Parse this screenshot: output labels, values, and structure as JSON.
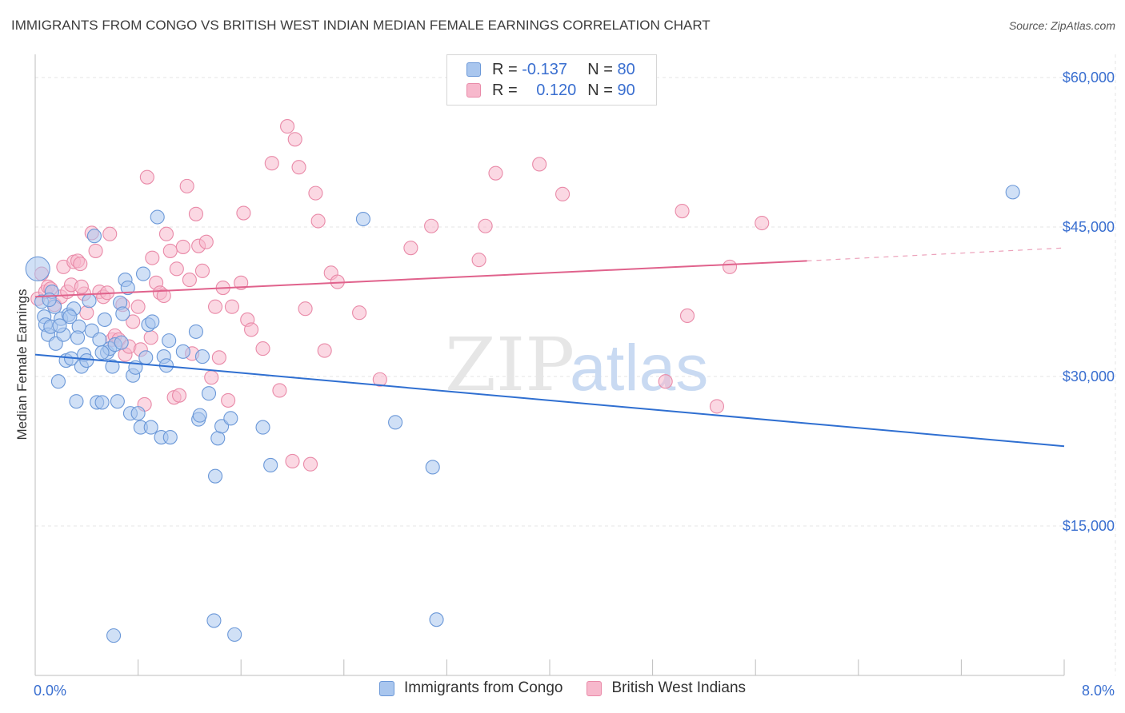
{
  "title": "IMMIGRANTS FROM CONGO VS BRITISH WEST INDIAN MEDIAN FEMALE EARNINGS CORRELATION CHART",
  "source": "Source: ZipAtlas.com",
  "watermark": {
    "zip": "ZIP",
    "atlas": "atlas"
  },
  "colors": {
    "congo_fill": "#a9c6ee",
    "congo_stroke": "#6b98d8",
    "congo_line": "#2f6fd1",
    "bwi_fill": "#f7b8cc",
    "bwi_stroke": "#e98aa8",
    "bwi_line": "#e0628c",
    "axis_label": "#3a6fd0",
    "grid": "#e4e4e4"
  },
  "legend": {
    "r_label": "R =",
    "n_label": "N =",
    "congo": {
      "r": "-0.137",
      "n": "80"
    },
    "bwi": {
      "r": "0.120",
      "n": "90"
    }
  },
  "chart_data": {
    "type": "scatter",
    "xlabel": "",
    "ylabel": "Median Female Earnings",
    "xlim": [
      0,
      8
    ],
    "ylim": [
      0,
      63000
    ],
    "x_tick_labels": {
      "min": "0.0%",
      "max": "8.0%"
    },
    "y_ticks": [
      {
        "value": 15000,
        "label": "$15,000"
      },
      {
        "value": 30000,
        "label": "$30,000"
      },
      {
        "value": 45000,
        "label": "$45,000"
      },
      {
        "value": 60000,
        "label": "$60,000"
      }
    ],
    "grid": true,
    "legend_position": "top-center",
    "series": [
      {
        "name": "Immigrants from Congo",
        "r": -0.137,
        "n": 80,
        "trend": {
          "x0": 0.0,
          "y0": 32200,
          "x1": 8.0,
          "y1": 23000
        },
        "points": [
          [
            0.02,
            40800
          ],
          [
            0.05,
            37500
          ],
          [
            0.07,
            36000
          ],
          [
            0.08,
            35200
          ],
          [
            0.1,
            34200
          ],
          [
            0.12,
            35000
          ],
          [
            0.13,
            38500
          ],
          [
            0.15,
            37000
          ],
          [
            0.16,
            33300
          ],
          [
            0.18,
            29500
          ],
          [
            0.2,
            35800
          ],
          [
            0.22,
            34200
          ],
          [
            0.24,
            31600
          ],
          [
            0.26,
            36200
          ],
          [
            0.28,
            31800
          ],
          [
            0.3,
            36800
          ],
          [
            0.32,
            27500
          ],
          [
            0.34,
            35000
          ],
          [
            0.36,
            31000
          ],
          [
            0.38,
            32200
          ],
          [
            0.4,
            31600
          ],
          [
            0.42,
            37600
          ],
          [
            0.44,
            34600
          ],
          [
            0.46,
            44100
          ],
          [
            0.48,
            27400
          ],
          [
            0.5,
            33700
          ],
          [
            0.52,
            27400
          ],
          [
            0.54,
            35700
          ],
          [
            0.56,
            32400
          ],
          [
            0.58,
            32800
          ],
          [
            0.6,
            31000
          ],
          [
            0.62,
            33200
          ],
          [
            0.64,
            27500
          ],
          [
            0.66,
            37400
          ],
          [
            0.68,
            36300
          ],
          [
            0.7,
            39700
          ],
          [
            0.72,
            38900
          ],
          [
            0.74,
            26300
          ],
          [
            0.76,
            30100
          ],
          [
            0.78,
            30900
          ],
          [
            0.8,
            26300
          ],
          [
            0.82,
            24900
          ],
          [
            0.84,
            40300
          ],
          [
            0.86,
            31900
          ],
          [
            0.88,
            35200
          ],
          [
            0.9,
            24900
          ],
          [
            0.95,
            46000
          ],
          [
            0.98,
            23900
          ],
          [
            1.0,
            32000
          ],
          [
            1.02,
            31100
          ],
          [
            1.04,
            33600
          ],
          [
            1.05,
            23900
          ],
          [
            1.15,
            32500
          ],
          [
            1.25,
            34500
          ],
          [
            1.27,
            25700
          ],
          [
            1.28,
            26100
          ],
          [
            1.3,
            32000
          ],
          [
            1.35,
            28300
          ],
          [
            1.4,
            20000
          ],
          [
            1.42,
            23800
          ],
          [
            1.45,
            25000
          ],
          [
            1.52,
            25800
          ],
          [
            1.77,
            24900
          ],
          [
            1.83,
            21100
          ],
          [
            2.55,
            45800
          ],
          [
            2.8,
            25400
          ],
          [
            3.09,
            20900
          ],
          [
            7.6,
            48500
          ],
          [
            0.61,
            4000
          ],
          [
            1.39,
            5500
          ],
          [
            1.55,
            4100
          ],
          [
            3.12,
            5600
          ],
          [
            0.67,
            33400
          ],
          [
            0.33,
            33900
          ],
          [
            0.19,
            35100
          ],
          [
            0.11,
            37700
          ],
          [
            0.91,
            35500
          ],
          [
            0.52,
            32400
          ],
          [
            0.27,
            36000
          ]
        ]
      },
      {
        "name": "British West Indians",
        "r": 0.12,
        "n": 90,
        "trend": {
          "x0": 0.0,
          "y0": 38000,
          "x1": 6.0,
          "y1": 41600,
          "dash_x1": 8.0,
          "dash_y1": 42900
        },
        "points": [
          [
            0.02,
            37800
          ],
          [
            0.05,
            40300
          ],
          [
            0.08,
            38500
          ],
          [
            0.1,
            39000
          ],
          [
            0.15,
            37200
          ],
          [
            0.2,
            38000
          ],
          [
            0.22,
            41000
          ],
          [
            0.25,
            38500
          ],
          [
            0.28,
            39200
          ],
          [
            0.3,
            41500
          ],
          [
            0.33,
            41600
          ],
          [
            0.35,
            41300
          ],
          [
            0.38,
            38300
          ],
          [
            0.4,
            36400
          ],
          [
            0.44,
            44400
          ],
          [
            0.47,
            42600
          ],
          [
            0.5,
            38500
          ],
          [
            0.53,
            38000
          ],
          [
            0.56,
            38400
          ],
          [
            0.58,
            44300
          ],
          [
            0.6,
            33700
          ],
          [
            0.62,
            34100
          ],
          [
            0.65,
            33700
          ],
          [
            0.68,
            37200
          ],
          [
            0.7,
            32200
          ],
          [
            0.73,
            33000
          ],
          [
            0.76,
            35500
          ],
          [
            0.8,
            37000
          ],
          [
            0.82,
            32700
          ],
          [
            0.85,
            27200
          ],
          [
            0.87,
            50000
          ],
          [
            0.9,
            33900
          ],
          [
            0.91,
            41900
          ],
          [
            0.94,
            39400
          ],
          [
            0.97,
            38400
          ],
          [
            1.0,
            38100
          ],
          [
            1.02,
            44300
          ],
          [
            1.05,
            42600
          ],
          [
            1.08,
            27900
          ],
          [
            1.1,
            40800
          ],
          [
            1.12,
            28100
          ],
          [
            1.15,
            43000
          ],
          [
            1.18,
            49100
          ],
          [
            1.2,
            39700
          ],
          [
            1.22,
            32300
          ],
          [
            1.25,
            46300
          ],
          [
            1.27,
            43100
          ],
          [
            1.3,
            40600
          ],
          [
            1.33,
            43500
          ],
          [
            1.37,
            29900
          ],
          [
            1.4,
            37000
          ],
          [
            1.43,
            31900
          ],
          [
            1.46,
            38900
          ],
          [
            1.5,
            27600
          ],
          [
            1.53,
            37000
          ],
          [
            1.6,
            39400
          ],
          [
            1.62,
            46400
          ],
          [
            1.65,
            35700
          ],
          [
            1.68,
            34700
          ],
          [
            1.77,
            32800
          ],
          [
            1.84,
            51400
          ],
          [
            1.9,
            28600
          ],
          [
            1.96,
            55100
          ],
          [
            2.0,
            21500
          ],
          [
            2.02,
            53800
          ],
          [
            2.05,
            51000
          ],
          [
            2.1,
            36800
          ],
          [
            2.14,
            21200
          ],
          [
            2.2,
            45600
          ],
          [
            2.25,
            32600
          ],
          [
            2.3,
            40400
          ],
          [
            2.35,
            39500
          ],
          [
            2.52,
            36400
          ],
          [
            2.68,
            29700
          ],
          [
            2.92,
            42900
          ],
          [
            3.08,
            45100
          ],
          [
            3.5,
            45100
          ],
          [
            3.45,
            41700
          ],
          [
            3.58,
            50400
          ],
          [
            3.92,
            51300
          ],
          [
            4.1,
            48300
          ],
          [
            4.9,
            29500
          ],
          [
            5.03,
            46600
          ],
          [
            5.07,
            36100
          ],
          [
            5.3,
            27000
          ],
          [
            5.4,
            41000
          ],
          [
            5.65,
            45400
          ],
          [
            2.18,
            48400
          ],
          [
            0.12,
            38800
          ],
          [
            0.36,
            39000
          ]
        ]
      }
    ]
  },
  "bottom_legend": [
    "Immigrants from Congo",
    "British West Indians"
  ]
}
